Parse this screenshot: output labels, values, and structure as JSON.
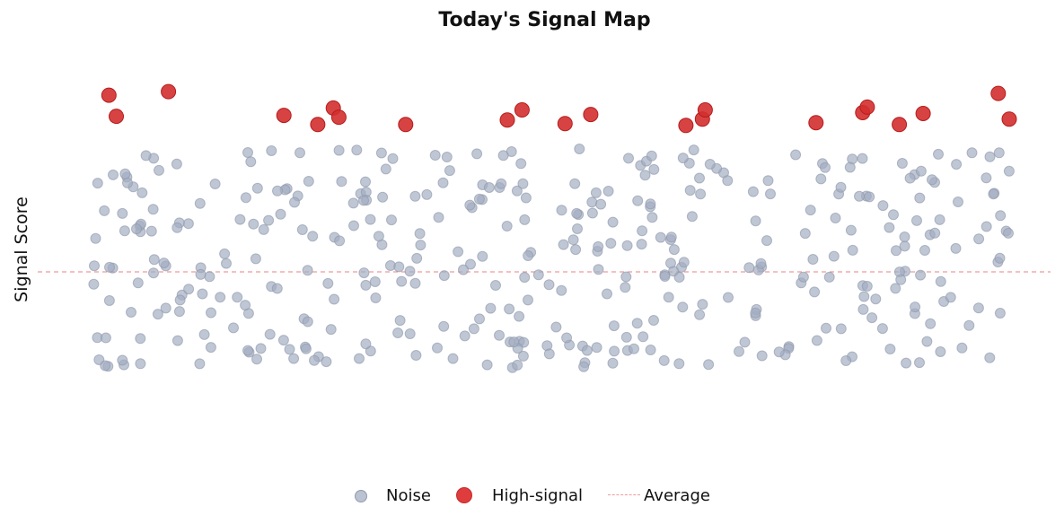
{
  "chart_data": {
    "type": "scatter",
    "title": "Today's Signal Map",
    "xlabel": "",
    "ylabel": "Signal Score",
    "grid": false,
    "axes_visible": false,
    "legend": {
      "placement": "bottom-center",
      "entries": [
        "Noise",
        "High-signal",
        "Average"
      ]
    },
    "colors": {
      "noise": "#a4aec2",
      "high_signal": "#d32f2f",
      "average": "#ef9a9a"
    },
    "average": 0.0,
    "series": [
      {
        "name": "Noise",
        "role": "noise",
        "seed": 20240517,
        "count": 400,
        "x_range": [
          0,
          1
        ],
        "y_range": [
          -1.05,
          1.35
        ]
      },
      {
        "name": "High-signal",
        "role": "highlight",
        "points": [
          [
            0.017,
            1.93
          ],
          [
            0.025,
            1.7
          ],
          [
            0.082,
            1.97
          ],
          [
            0.208,
            1.71
          ],
          [
            0.245,
            1.61
          ],
          [
            0.262,
            1.79
          ],
          [
            0.268,
            1.69
          ],
          [
            0.341,
            1.61
          ],
          [
            0.452,
            1.66
          ],
          [
            0.468,
            1.77
          ],
          [
            0.515,
            1.62
          ],
          [
            0.543,
            1.72
          ],
          [
            0.647,
            1.6
          ],
          [
            0.665,
            1.67
          ],
          [
            0.668,
            1.77
          ],
          [
            0.789,
            1.63
          ],
          [
            0.84,
            1.74
          ],
          [
            0.845,
            1.8
          ],
          [
            0.88,
            1.61
          ],
          [
            0.906,
            1.73
          ],
          [
            0.988,
            1.95
          ],
          [
            1.0,
            1.67
          ]
        ]
      }
    ]
  }
}
